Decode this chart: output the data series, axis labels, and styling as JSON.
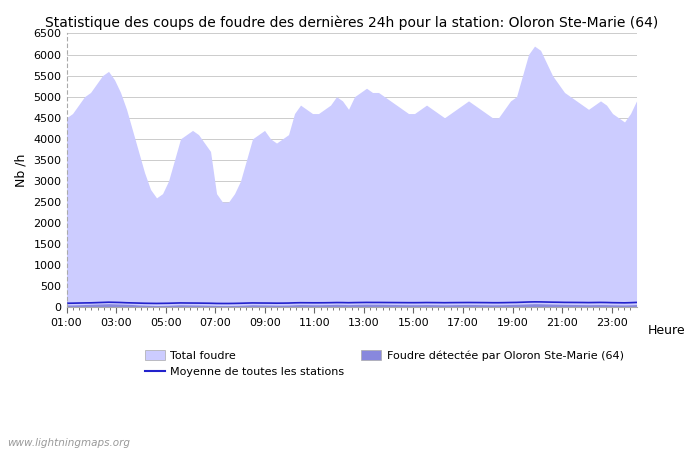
{
  "title": "Statistique des coups de foudre des dernières 24h pour la station: Oloron Ste-Marie (64)",
  "xlabel": "Heure",
  "ylabel": "Nb /h",
  "ylim": [
    0,
    6500
  ],
  "yticks": [
    0,
    500,
    1000,
    1500,
    2000,
    2500,
    3000,
    3500,
    4000,
    4500,
    5000,
    5500,
    6000,
    6500
  ],
  "xtick_labels": [
    "01:00",
    "03:00",
    "05:00",
    "07:00",
    "09:00",
    "11:00",
    "13:00",
    "15:00",
    "17:00",
    "19:00",
    "21:00",
    "23:00"
  ],
  "fill_total_color": "#ccccff",
  "fill_local_color": "#8888dd",
  "line_mean_color": "#2222cc",
  "watermark": "www.lightningmaps.org",
  "total_foudre": [
    4500,
    4600,
    4800,
    5000,
    5100,
    5300,
    5500,
    5600,
    5400,
    5100,
    4700,
    4200,
    3700,
    3200,
    2800,
    2600,
    2700,
    3000,
    3500,
    4000,
    4100,
    4200,
    4100,
    3900,
    3700,
    2700,
    2500,
    2500,
    2700,
    3000,
    3500,
    4000,
    4100,
    4200,
    4000,
    3900,
    4000,
    4100,
    4600,
    4800,
    4700,
    4600,
    4600,
    4700,
    4800,
    5000,
    4900,
    4700,
    5000,
    5100,
    5200,
    5100,
    5100,
    5000,
    4900,
    4800,
    4700,
    4600,
    4600,
    4700,
    4800,
    4700,
    4600,
    4500,
    4600,
    4700,
    4800,
    4900,
    4800,
    4700,
    4600,
    4500,
    4500,
    4700,
    4900,
    5000,
    5500,
    6000,
    6200,
    6100,
    5800,
    5500,
    5300,
    5100,
    5000,
    4900,
    4800,
    4700,
    4800,
    4900,
    4800,
    4600,
    4500,
    4400,
    4600,
    4900
  ],
  "local_foudre": [
    60,
    60,
    65,
    70,
    75,
    80,
    85,
    90,
    85,
    80,
    75,
    70,
    60,
    55,
    50,
    45,
    48,
    52,
    58,
    65,
    62,
    60,
    58,
    55,
    52,
    48,
    45,
    45,
    48,
    52,
    58,
    65,
    62,
    60,
    58,
    55,
    55,
    58,
    65,
    70,
    68,
    65,
    65,
    68,
    70,
    75,
    72,
    68,
    72,
    75,
    78,
    76,
    76,
    74,
    72,
    70,
    68,
    66,
    66,
    68,
    70,
    68,
    66,
    64,
    66,
    68,
    70,
    72,
    70,
    68,
    66,
    64,
    65,
    68,
    72,
    75,
    80,
    85,
    90,
    88,
    84,
    80,
    77,
    74,
    72,
    70,
    68,
    66,
    68,
    70,
    68,
    64,
    62,
    60,
    64,
    70
  ],
  "mean_foudre": [
    100,
    102,
    105,
    108,
    110,
    115,
    120,
    125,
    122,
    118,
    112,
    108,
    104,
    100,
    98,
    96,
    98,
    100,
    104,
    108,
    106,
    105,
    104,
    102,
    100,
    96,
    95,
    95,
    97,
    100,
    104,
    108,
    106,
    105,
    104,
    102,
    103,
    105,
    110,
    113,
    112,
    111,
    111,
    112,
    114,
    117,
    116,
    113,
    116,
    118,
    120,
    119,
    119,
    118,
    117,
    116,
    115,
    114,
    114,
    115,
    117,
    116,
    115,
    113,
    115,
    116,
    117,
    118,
    117,
    116,
    115,
    113,
    113,
    115,
    118,
    120,
    125,
    130,
    133,
    132,
    129,
    126,
    124,
    121,
    120,
    119,
    118,
    116,
    118,
    120,
    118,
    114,
    112,
    110,
    114,
    120
  ],
  "n_points": 96,
  "figwidth": 7.0,
  "figheight": 4.5,
  "dpi": 100,
  "title_fontsize": 10,
  "legend_fontsize": 8,
  "axis_fontsize": 8,
  "watermark_fontsize": 7.5
}
